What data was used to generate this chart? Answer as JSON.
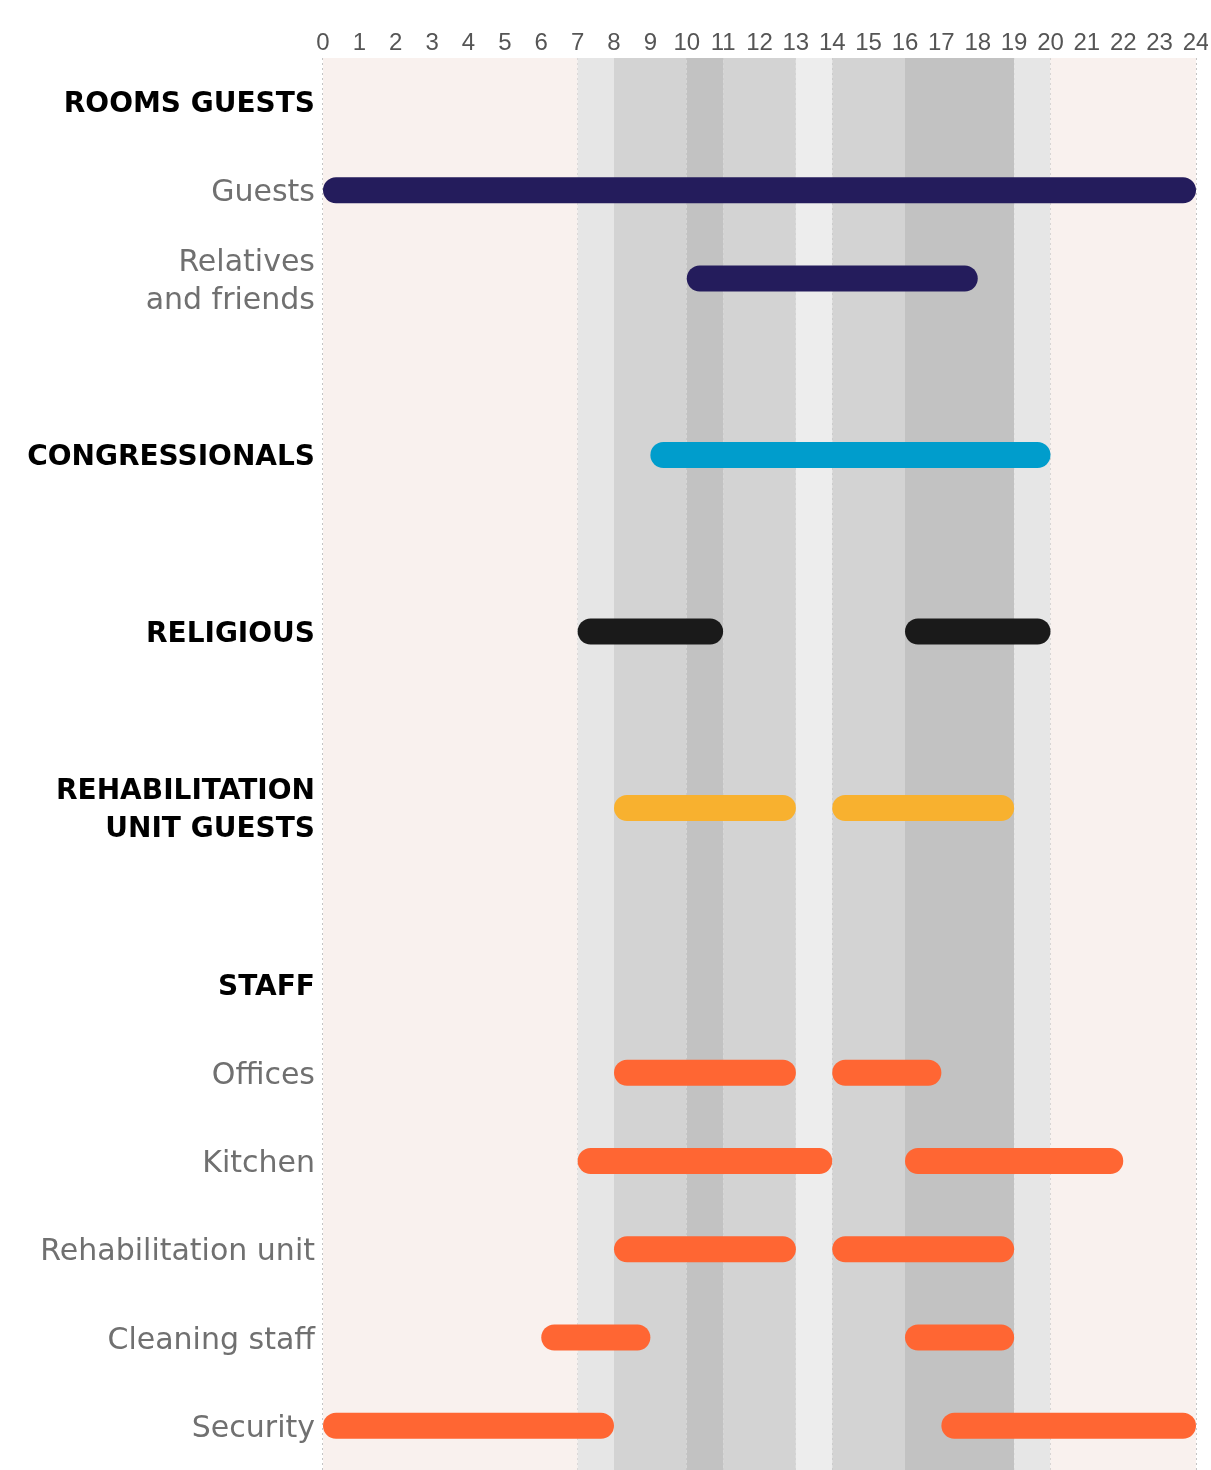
{
  "chart_data": {
    "type": "bar",
    "orientation": "horizontal",
    "categories": [
      "ROOMS GUESTS",
      "Guests",
      "Relatives\nand friends",
      null,
      "CONGRESSIONALS",
      null,
      "RELIGIOUS",
      null,
      "REHABILITATION\nUNIT GUESTS",
      null,
      "STAFF",
      "Offices",
      "Kitchen",
      "Rehabilitation unit",
      "Cleaning staff",
      "Security"
    ],
    "series": [
      {
        "base": [
          null,
          0,
          10,
          null,
          9,
          null,
          7,
          null,
          8,
          null,
          null,
          8,
          7,
          8,
          6,
          0
        ],
        "values": [
          null,
          24,
          8,
          null,
          11,
          null,
          4,
          null,
          5,
          null,
          null,
          5,
          7,
          5,
          3,
          8
        ],
        "colors": [
          null,
          "#241c5c",
          "#241c5c",
          null,
          "#009dcc",
          null,
          "#1a1a1a",
          null,
          "#f8b12f",
          null,
          null,
          "#ff6633",
          "#ff6633",
          "#ff6633",
          "#ff6633",
          "#ff6633"
        ]
      },
      {
        "base": [
          null,
          null,
          null,
          null,
          null,
          null,
          16,
          null,
          14,
          null,
          null,
          14,
          16,
          14,
          16,
          17
        ],
        "values": [
          null,
          null,
          null,
          null,
          null,
          null,
          4,
          null,
          5,
          null,
          null,
          3,
          6,
          5,
          3,
          7
        ],
        "colors": [
          null,
          null,
          null,
          null,
          null,
          null,
          "#1a1a1a",
          null,
          "#f8b12f",
          null,
          null,
          "#ff6633",
          "#ff6633",
          "#ff6633",
          "#ff6633",
          "#ff6633"
        ]
      }
    ],
    "xlim": [
      0,
      24
    ],
    "xticks": [
      0,
      1,
      2,
      3,
      4,
      5,
      6,
      7,
      8,
      9,
      10,
      11,
      12,
      13,
      14,
      15,
      16,
      17,
      18,
      19,
      20,
      21,
      22,
      23,
      24
    ],
    "grid": true,
    "bands": [
      {
        "axis": "x",
        "from": 0,
        "to": 7,
        "color": "#f9f1ee"
      },
      {
        "axis": "x",
        "from": 7,
        "to": 8,
        "color": "#e6e6e6"
      },
      {
        "axis": "x",
        "from": 8,
        "to": 10,
        "color": "#d3d3d3"
      },
      {
        "axis": "x",
        "from": 10,
        "to": 11,
        "color": "#c2c2c2"
      },
      {
        "axis": "x",
        "from": 11,
        "to": 13,
        "color": "#d3d3d3"
      },
      {
        "axis": "x",
        "from": 13,
        "to": 14,
        "color": "#ededed"
      },
      {
        "axis": "x",
        "from": 14,
        "to": 16,
        "color": "#d3d3d3"
      },
      {
        "axis": "x",
        "from": 16,
        "to": 19,
        "color": "#c2c2c2"
      },
      {
        "axis": "x",
        "from": 19,
        "to": 20,
        "color": "#e6e6e6"
      },
      {
        "axis": "x",
        "from": 20,
        "to": 24,
        "color": "#f9f1ee"
      }
    ]
  }
}
